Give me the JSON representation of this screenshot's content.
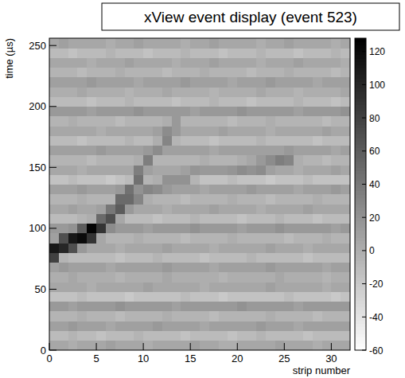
{
  "chart_data": {
    "type": "heatmap",
    "title": "xView event display (event 523)",
    "x_label": "strip number",
    "y_label": "time (µs)",
    "xlim": [
      0,
      32
    ],
    "ylim": [
      0,
      256
    ],
    "xticks": [
      0,
      5,
      10,
      15,
      20,
      25,
      30
    ],
    "yticks": [
      0,
      50,
      100,
      150,
      200,
      250
    ],
    "x_bins": [
      0,
      1,
      2,
      3,
      4,
      5,
      6,
      7,
      8,
      9,
      10,
      11,
      12,
      13,
      14,
      15,
      16,
      17,
      18,
      19,
      20,
      21,
      22,
      23,
      24,
      25,
      26,
      27,
      28,
      29,
      30,
      31,
      32
    ],
    "y_bins": [
      0,
      8,
      16,
      24,
      32,
      40,
      48,
      56,
      64,
      72,
      80,
      88,
      96,
      104,
      112,
      120,
      128,
      136,
      144,
      152,
      160,
      168,
      176,
      184,
      192,
      200,
      208,
      216,
      224,
      232,
      240,
      248,
      256
    ],
    "cells": [
      [
        5,
        5,
        0,
        5,
        5,
        5,
        10,
        5,
        5,
        5,
        0,
        5,
        5,
        5,
        5,
        10,
        5,
        5,
        0,
        0,
        5,
        5,
        5,
        5,
        10,
        5,
        5,
        5,
        0,
        5,
        5,
        5
      ],
      [
        -10,
        -10,
        -5,
        -10,
        -10,
        -15,
        -10,
        -10,
        -10,
        -5,
        -10,
        -10,
        -10,
        -10,
        -15,
        -10,
        -10,
        -10,
        -10,
        -15,
        -10,
        -10,
        -5,
        -10,
        -10,
        -10,
        -10,
        -15,
        -10,
        -10,
        -10,
        -10
      ],
      [
        10,
        10,
        15,
        10,
        10,
        10,
        5,
        10,
        10,
        10,
        10,
        15,
        10,
        10,
        10,
        10,
        5,
        10,
        10,
        10,
        10,
        10,
        15,
        10,
        10,
        10,
        5,
        10,
        10,
        10,
        10,
        10
      ],
      [
        -5,
        -5,
        -5,
        0,
        -5,
        -5,
        -5,
        -10,
        -5,
        -5,
        -5,
        -5,
        0,
        -5,
        -5,
        -5,
        -5,
        -10,
        -5,
        -5,
        -5,
        -5,
        -5,
        0,
        -5,
        -5,
        -5,
        -5,
        -10,
        -5,
        -5,
        -5
      ],
      [
        15,
        15,
        10,
        15,
        15,
        15,
        15,
        20,
        15,
        15,
        15,
        15,
        15,
        10,
        15,
        15,
        15,
        15,
        15,
        15,
        20,
        15,
        15,
        15,
        15,
        15,
        10,
        15,
        15,
        15,
        15,
        15
      ],
      [
        -15,
        -15,
        -15,
        -10,
        -15,
        -15,
        -15,
        -15,
        -20,
        -15,
        -15,
        -15,
        -15,
        -15,
        -10,
        -15,
        -15,
        -15,
        -20,
        -15,
        -15,
        -15,
        -15,
        -15,
        -15,
        -10,
        -15,
        -15,
        -15,
        -15,
        -20,
        -15
      ],
      [
        5,
        5,
        5,
        5,
        0,
        5,
        5,
        5,
        5,
        5,
        10,
        5,
        5,
        5,
        5,
        5,
        0,
        5,
        5,
        5,
        5,
        5,
        5,
        10,
        5,
        5,
        5,
        5,
        5,
        0,
        5,
        5
      ],
      [
        0,
        0,
        5,
        0,
        0,
        0,
        0,
        -5,
        0,
        0,
        0,
        0,
        5,
        0,
        0,
        0,
        0,
        0,
        -5,
        0,
        0,
        0,
        0,
        0,
        5,
        0,
        0,
        0,
        0,
        -5,
        0,
        0
      ],
      [
        10,
        15,
        10,
        10,
        10,
        10,
        5,
        10,
        10,
        10,
        10,
        10,
        15,
        10,
        10,
        10,
        10,
        5,
        10,
        10,
        10,
        10,
        10,
        15,
        10,
        10,
        10,
        10,
        10,
        5,
        10,
        10
      ],
      [
        80,
        -5,
        -10,
        -10,
        -10,
        -10,
        -10,
        -15,
        -10,
        -10,
        -10,
        -5,
        -10,
        -10,
        -10,
        -10,
        -15,
        -10,
        -10,
        -10,
        -10,
        -5,
        -10,
        -10,
        -10,
        -10,
        -10,
        -15,
        -10,
        -10,
        -10,
        -10
      ],
      [
        110,
        100,
        70,
        15,
        5,
        5,
        5,
        0,
        5,
        5,
        5,
        5,
        10,
        5,
        5,
        5,
        5,
        0,
        5,
        5,
        5,
        5,
        5,
        10,
        5,
        5,
        5,
        0,
        5,
        5,
        5,
        5
      ],
      [
        10,
        70,
        110,
        120,
        90,
        5,
        -5,
        -5,
        -5,
        0,
        -5,
        -5,
        -5,
        -5,
        -10,
        -5,
        -5,
        -5,
        -5,
        0,
        -5,
        -5,
        -5,
        -5,
        -5,
        -10,
        -5,
        -5,
        -5,
        0,
        -5,
        -5
      ],
      [
        15,
        15,
        20,
        60,
        125,
        90,
        25,
        15,
        15,
        15,
        10,
        15,
        15,
        15,
        15,
        20,
        15,
        15,
        15,
        15,
        10,
        15,
        15,
        15,
        20,
        15,
        15,
        15,
        15,
        15,
        10,
        15
      ],
      [
        -10,
        -10,
        -10,
        -5,
        0,
        50,
        70,
        5,
        -10,
        -10,
        -10,
        -15,
        -10,
        -10,
        -10,
        -5,
        -10,
        -10,
        -10,
        -10,
        -15,
        -10,
        -10,
        -10,
        -5,
        -10,
        -10,
        -10,
        -15,
        -10,
        -10,
        -10
      ],
      [
        5,
        5,
        10,
        5,
        5,
        10,
        40,
        60,
        15,
        5,
        5,
        5,
        0,
        5,
        5,
        5,
        5,
        10,
        5,
        5,
        5,
        5,
        0,
        5,
        5,
        5,
        5,
        10,
        5,
        5,
        5,
        5
      ],
      [
        -5,
        -5,
        -5,
        0,
        -5,
        -5,
        -5,
        50,
        50,
        30,
        0,
        -5,
        -5,
        -5,
        -10,
        -5,
        -5,
        -5,
        -5,
        0,
        -5,
        -5,
        -5,
        -10,
        -5,
        -5,
        -5,
        -5,
        0,
        -5,
        -5,
        -5
      ],
      [
        10,
        10,
        10,
        15,
        10,
        10,
        10,
        15,
        45,
        20,
        30,
        25,
        15,
        10,
        10,
        10,
        5,
        10,
        10,
        10,
        10,
        15,
        10,
        10,
        10,
        10,
        5,
        10,
        10,
        10,
        15,
        10
      ],
      [
        -15,
        -15,
        -10,
        -15,
        -15,
        -15,
        -20,
        -15,
        -10,
        45,
        -5,
        0,
        20,
        20,
        20,
        -5,
        -15,
        -15,
        -15,
        -10,
        -15,
        -15,
        -15,
        -20,
        -15,
        -15,
        -15,
        -10,
        -15,
        -15,
        -15,
        -15
      ],
      [
        5,
        5,
        5,
        0,
        5,
        5,
        5,
        5,
        5,
        35,
        10,
        5,
        5,
        5,
        10,
        18,
        15,
        15,
        15,
        18,
        25,
        20,
        25,
        10,
        5,
        5,
        0,
        5,
        5,
        5,
        10,
        5
      ],
      [
        -5,
        -5,
        -5,
        -5,
        -10,
        -5,
        -5,
        -5,
        -5,
        0,
        35,
        -5,
        -5,
        -5,
        -5,
        -5,
        0,
        -5,
        -5,
        -5,
        0,
        5,
        15,
        25,
        35,
        30,
        0,
        -5,
        -5,
        -10,
        -5,
        -5
      ],
      [
        10,
        10,
        10,
        10,
        10,
        15,
        10,
        10,
        10,
        10,
        15,
        25,
        10,
        10,
        10,
        10,
        10,
        5,
        10,
        10,
        10,
        10,
        10,
        10,
        10,
        15,
        10,
        10,
        10,
        10,
        5,
        10
      ],
      [
        -10,
        -10,
        -10,
        -15,
        -10,
        -10,
        -10,
        -10,
        -5,
        -10,
        -10,
        0,
        30,
        -5,
        -10,
        -10,
        -10,
        -15,
        -10,
        -10,
        -10,
        -10,
        -5,
        -10,
        -10,
        -10,
        -10,
        -10,
        -15,
        -10,
        -10,
        -10
      ],
      [
        5,
        5,
        5,
        5,
        5,
        0,
        5,
        5,
        5,
        5,
        5,
        10,
        25,
        15,
        5,
        5,
        5,
        5,
        10,
        5,
        5,
        5,
        5,
        0,
        5,
        5,
        5,
        5,
        5,
        10,
        5,
        5
      ],
      [
        -5,
        -5,
        0,
        -5,
        -5,
        -5,
        -5,
        -10,
        -5,
        -5,
        -5,
        -5,
        0,
        15,
        -5,
        -5,
        -5,
        -5,
        -5,
        -10,
        -5,
        -5,
        -5,
        0,
        -5,
        -5,
        -5,
        -5,
        -5,
        -10,
        -5,
        -5
      ],
      [
        15,
        15,
        15,
        15,
        10,
        15,
        15,
        15,
        15,
        20,
        15,
        15,
        15,
        15,
        15,
        10,
        15,
        15,
        15,
        15,
        20,
        15,
        15,
        15,
        15,
        15,
        10,
        15,
        15,
        15,
        15,
        20
      ],
      [
        -10,
        -10,
        -10,
        -10,
        -15,
        -10,
        -10,
        -10,
        -5,
        -10,
        -10,
        -10,
        -10,
        -15,
        -10,
        -10,
        -10,
        -5,
        -10,
        -10,
        -10,
        -15,
        -10,
        -10,
        -10,
        -10,
        -5,
        -10,
        -10,
        -10,
        -15,
        -10
      ],
      [
        0,
        0,
        0,
        5,
        0,
        0,
        0,
        0,
        -5,
        0,
        0,
        0,
        5,
        0,
        0,
        0,
        0,
        -5,
        0,
        0,
        0,
        0,
        5,
        0,
        0,
        0,
        -5,
        0,
        0,
        0,
        0,
        5
      ],
      [
        10,
        10,
        10,
        10,
        15,
        10,
        10,
        10,
        10,
        5,
        10,
        10,
        10,
        10,
        15,
        10,
        10,
        10,
        10,
        5,
        10,
        10,
        10,
        15,
        10,
        10,
        10,
        10,
        5,
        10,
        10,
        10
      ],
      [
        -5,
        -5,
        -5,
        -10,
        -5,
        -5,
        -5,
        0,
        -5,
        -5,
        -5,
        -5,
        -10,
        -5,
        -5,
        -5,
        0,
        -5,
        -5,
        -5,
        -5,
        -10,
        -5,
        -5,
        -5,
        0,
        -5,
        -5,
        -5,
        -5,
        -10,
        -5
      ],
      [
        5,
        5,
        5,
        5,
        0,
        5,
        5,
        5,
        10,
        5,
        5,
        5,
        5,
        0,
        5,
        5,
        5,
        10,
        5,
        5,
        5,
        5,
        0,
        5,
        5,
        5,
        10,
        5,
        5,
        5,
        5,
        0
      ],
      [
        -10,
        -10,
        -15,
        -10,
        -10,
        -10,
        -5,
        -10,
        -10,
        -10,
        -15,
        -10,
        -10,
        -10,
        -5,
        -10,
        -10,
        -10,
        -15,
        -10,
        -10,
        -10,
        -5,
        -10,
        -10,
        -10,
        -15,
        -10,
        -10,
        -10,
        -5,
        -10
      ],
      [
        5,
        10,
        5,
        5,
        5,
        5,
        0,
        5,
        5,
        10,
        5,
        5,
        5,
        5,
        0,
        5,
        5,
        10,
        5,
        5,
        5,
        5,
        0,
        5,
        5,
        10,
        5,
        5,
        5,
        5,
        0,
        5
      ]
    ],
    "color_range": [
      -60,
      128
    ],
    "color_ticks": [
      -60,
      -40,
      -20,
      0,
      20,
      40,
      60,
      80,
      100,
      120
    ]
  }
}
